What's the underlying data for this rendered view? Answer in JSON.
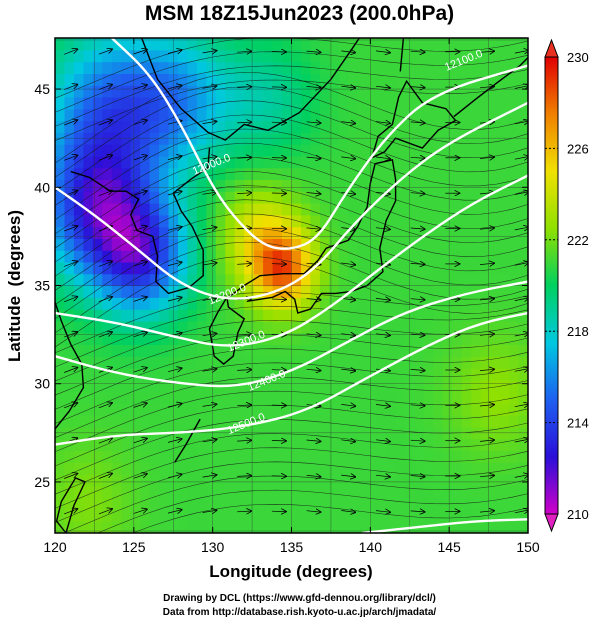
{
  "title": "MSM 18Z15Jun2023 (200.0hPa)",
  "credits": {
    "line1": "Drawing by DCL (https://www.gfd-dennou.org/library/dcl/)",
    "line2": "Data from http://database.rish.kyoto-u.ac.jp/arch/jmadata/"
  },
  "chart_data": {
    "type": "heatmap",
    "title": "MSM 18Z15Jun2023 (200.0hPa)",
    "xlabel": "Longitude (degrees)",
    "ylabel": "Latitude  (degrees)",
    "xlim": [
      120,
      150
    ],
    "ylim": [
      22.4,
      47.6
    ],
    "x_ticks": [
      120,
      125,
      130,
      135,
      140,
      145,
      150
    ],
    "x_tick_labels": [
      "120",
      "125",
      "130",
      "135",
      "140",
      "145",
      "150"
    ],
    "y_ticks": [
      25,
      30,
      35,
      40,
      45
    ],
    "y_tick_labels": [
      "25",
      "30",
      "35",
      "40",
      "45"
    ],
    "grid": true,
    "colorbar": {
      "range": [
        210,
        230
      ],
      "ticks": [
        210,
        214,
        218,
        222,
        226,
        230
      ],
      "tick_labels": [
        "210",
        "214",
        "218",
        "222",
        "226",
        "230"
      ],
      "colors": [
        "#d000c8",
        "#2a10d8",
        "#1e60f0",
        "#00c8e0",
        "#00d060",
        "#90e000",
        "#f0e000",
        "#f08000",
        "#e00000"
      ]
    },
    "contours": [
      {
        "label": "12000.0",
        "points": [
          [
            123.6,
            47.6
          ],
          [
            126.0,
            45.8
          ],
          [
            128.0,
            43.2
          ],
          [
            129.8,
            40.3
          ],
          [
            131.2,
            38.6
          ],
          [
            133.2,
            37.0
          ],
          [
            135.0,
            36.8
          ],
          [
            136.7,
            37.4
          ],
          [
            138.5,
            39.8
          ],
          [
            141.0,
            42.6
          ],
          [
            144.0,
            44.8
          ],
          [
            150.0,
            46.2
          ]
        ]
      },
      {
        "label": "12200.0",
        "points": [
          [
            120.0,
            40.0
          ],
          [
            122.5,
            38.6
          ],
          [
            125.0,
            37.0
          ],
          [
            128.0,
            35.0
          ],
          [
            131.0,
            34.2
          ],
          [
            134.0,
            34.6
          ],
          [
            136.5,
            35.8
          ],
          [
            139.0,
            38.2
          ],
          [
            142.0,
            40.5
          ],
          [
            145.0,
            42.3
          ],
          [
            150.0,
            44.3
          ]
        ]
      },
      {
        "label": "12300.0",
        "points": [
          [
            120.0,
            33.6
          ],
          [
            124.0,
            33.1
          ],
          [
            127.5,
            32.4
          ],
          [
            131.0,
            31.8
          ],
          [
            134.5,
            32.4
          ],
          [
            137.5,
            33.9
          ],
          [
            140.5,
            35.8
          ],
          [
            143.5,
            37.6
          ],
          [
            146.5,
            39.2
          ],
          [
            150.0,
            40.6
          ]
        ]
      },
      {
        "label": "12400.0",
        "points": [
          [
            120.0,
            31.4
          ],
          [
            124.0,
            30.5
          ],
          [
            128.0,
            30.0
          ],
          [
            131.5,
            29.8
          ],
          [
            135.0,
            30.6
          ],
          [
            138.5,
            32.1
          ],
          [
            142.0,
            33.6
          ],
          [
            146.0,
            34.6
          ],
          [
            150.0,
            35.2
          ]
        ]
      },
      {
        "label": "12500.0",
        "points": [
          [
            120.0,
            26.9
          ],
          [
            124.0,
            27.4
          ],
          [
            128.0,
            27.5
          ],
          [
            132.0,
            27.8
          ],
          [
            136.0,
            28.6
          ],
          [
            140.0,
            30.4
          ],
          [
            144.0,
            32.1
          ],
          [
            147.0,
            33.1
          ],
          [
            150.0,
            33.6
          ]
        ]
      },
      {
        "label": "",
        "points": [
          [
            139.5,
            22.4
          ],
          [
            143.0,
            22.7
          ],
          [
            146.5,
            23.0
          ],
          [
            150.0,
            23.1
          ]
        ]
      }
    ],
    "contour_labels": [
      {
        "text": "12000.0",
        "at": [
          130.0,
          41.0
        ]
      },
      {
        "text": "12100.0",
        "at": [
          146.0,
          46.3
        ]
      },
      {
        "text": "12200.0",
        "at": [
          131.0,
          34.4
        ]
      },
      {
        "text": "12300.0",
        "at": [
          132.2,
          32.0
        ]
      },
      {
        "text": "12400.0",
        "at": [
          133.5,
          30.0
        ]
      },
      {
        "text": "12500.0",
        "at": [
          132.2,
          27.8
        ]
      }
    ],
    "temperature_field": {
      "base": 221,
      "features": [
        {
          "lon": 122.5,
          "lat": 39.0,
          "value": 213.8,
          "spread": 3.6
        },
        {
          "lon": 125.5,
          "lat": 36.5,
          "value": 214.0,
          "spread": 3.0
        },
        {
          "lon": 123.5,
          "lat": 44.0,
          "value": 215.5,
          "spread": 4.0
        },
        {
          "lon": 128.0,
          "lat": 44.5,
          "value": 217.0,
          "spread": 3.5
        },
        {
          "lon": 134.5,
          "lat": 35.8,
          "value": 227.5,
          "spread": 2.0
        },
        {
          "lon": 133.0,
          "lat": 37.5,
          "value": 224.5,
          "spread": 2.5
        },
        {
          "lon": 133.5,
          "lat": 44.5,
          "value": 219.0,
          "spread": 3.0
        },
        {
          "lon": 148.0,
          "lat": 29.5,
          "value": 222.5,
          "spread": 3.0
        },
        {
          "lon": 122.0,
          "lat": 24.0,
          "value": 222.2,
          "spread": 3.0
        }
      ]
    }
  }
}
